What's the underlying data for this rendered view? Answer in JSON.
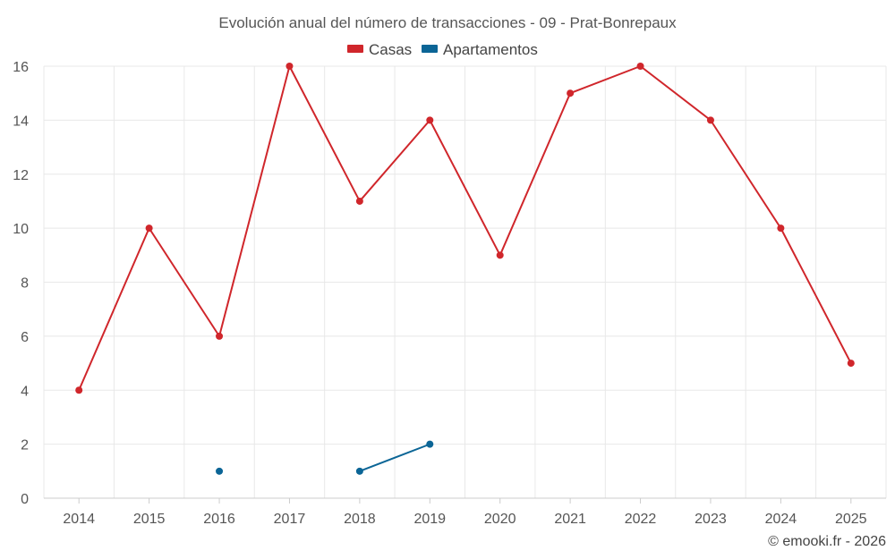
{
  "chart_data": {
    "type": "line",
    "title": "Evolución anual del número de transacciones - 09 - Prat-Bonrepaux",
    "categories": [
      "2014",
      "2015",
      "2016",
      "2017",
      "2018",
      "2019",
      "2020",
      "2021",
      "2022",
      "2023",
      "2024",
      "2025"
    ],
    "series": [
      {
        "name": "Casas",
        "color": "#d0262b",
        "values": [
          4,
          10,
          6,
          16,
          11,
          14,
          9,
          15,
          16,
          14,
          10,
          5
        ]
      },
      {
        "name": "Apartamentos",
        "color": "#0b6596",
        "values": [
          null,
          null,
          1,
          null,
          1,
          2,
          null,
          null,
          null,
          null,
          null,
          null
        ]
      }
    ],
    "y_ticks": [
      0,
      2,
      4,
      6,
      8,
      10,
      12,
      14,
      16
    ],
    "ylim": [
      0,
      16
    ],
    "xlabel": "",
    "ylabel": "",
    "grid": true,
    "legend_position": "top-center",
    "credit": "© emooki.fr - 2026"
  }
}
